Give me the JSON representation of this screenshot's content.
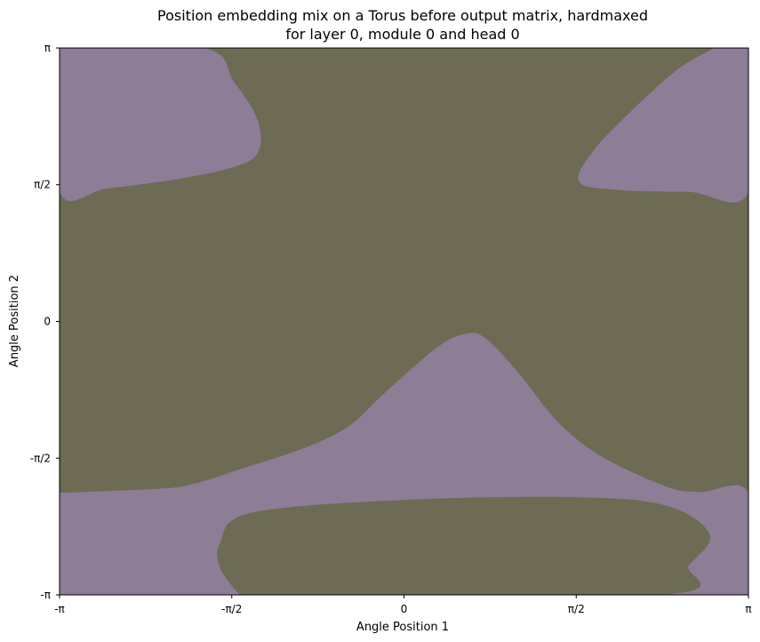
{
  "chart_data": {
    "type": "heatmap",
    "title_line1": "Position embedding mix on a Torus before output matrix, hardmaxed",
    "title_line2": "for layer 0, module 0 and head 0",
    "xlabel": "Angle Position 1",
    "ylabel": "Angle Position 2",
    "xlim": [
      -3.14159,
      3.14159
    ],
    "ylim": [
      -3.14159,
      3.14159
    ],
    "x_ticks": [
      {
        "value": -3.14159,
        "label": "-π"
      },
      {
        "value": -1.5708,
        "label": "-π/2"
      },
      {
        "value": 0,
        "label": "0"
      },
      {
        "value": 1.5708,
        "label": "π/2"
      },
      {
        "value": 3.14159,
        "label": "π"
      }
    ],
    "y_ticks": [
      {
        "value": -3.14159,
        "label": "-π"
      },
      {
        "value": -1.5708,
        "label": "-π/2"
      },
      {
        "value": 0,
        "label": "0"
      },
      {
        "value": 1.5708,
        "label": "π/2"
      },
      {
        "value": 3.14159,
        "label": "π"
      }
    ],
    "grid": false,
    "classes": [
      {
        "id": "class-a",
        "color": "#6d6b54"
      },
      {
        "id": "class-b",
        "color": "#8e7d97"
      }
    ],
    "background_class": "class-a",
    "regions": [
      {
        "class": "class-b",
        "name": "region-top-left",
        "points": [
          [
            -3.14159,
            3.14159
          ],
          [
            -1.83,
            3.14159
          ],
          [
            -1.55,
            2.75
          ],
          [
            -1.34,
            2.33
          ],
          [
            -1.32,
            1.98
          ],
          [
            -1.49,
            1.8
          ],
          [
            -2.0,
            1.65
          ],
          [
            -2.7,
            1.53
          ],
          [
            -3.14159,
            1.5
          ],
          [
            -3.14159,
            3.14159
          ]
        ]
      },
      {
        "class": "class-b",
        "name": "region-top-right",
        "points": [
          [
            2.83,
            3.14159
          ],
          [
            3.14159,
            3.14159
          ],
          [
            3.14159,
            1.49
          ],
          [
            2.6,
            1.49
          ],
          [
            1.98,
            1.51
          ],
          [
            1.6,
            1.6
          ],
          [
            1.72,
            1.95
          ],
          [
            2.1,
            2.45
          ],
          [
            2.5,
            2.9
          ],
          [
            2.83,
            3.14159
          ]
        ]
      },
      {
        "class": "class-b",
        "name": "region-bottom-band",
        "points": [
          [
            -3.14159,
            -1.97
          ],
          [
            -2.2,
            -1.92
          ],
          [
            -1.9,
            -1.86
          ],
          [
            -1.5,
            -1.7
          ],
          [
            -0.9,
            -1.45
          ],
          [
            -0.5,
            -1.2
          ],
          [
            -0.2,
            -0.85
          ],
          [
            0.3,
            -0.3
          ],
          [
            0.57,
            -0.14
          ],
          [
            0.75,
            -0.2
          ],
          [
            1.05,
            -0.6
          ],
          [
            1.4,
            -1.15
          ],
          [
            1.8,
            -1.55
          ],
          [
            2.4,
            -1.9
          ],
          [
            2.7,
            -1.96
          ],
          [
            3.14159,
            -1.97
          ],
          [
            3.14159,
            -3.14159
          ],
          [
            -3.14159,
            -3.14159
          ],
          [
            -3.14159,
            -1.97
          ]
        ]
      },
      {
        "class": "class-a",
        "name": "region-bottom-blob",
        "points": [
          [
            -1.5,
            -3.14159
          ],
          [
            -1.67,
            -2.85
          ],
          [
            -1.68,
            -2.55
          ],
          [
            -1.4,
            -2.2
          ],
          [
            0.0,
            -2.05
          ],
          [
            1.6,
            -2.02
          ],
          [
            2.4,
            -2.12
          ],
          [
            2.79,
            -2.45
          ],
          [
            2.6,
            -2.8
          ],
          [
            2.34,
            -3.14159
          ],
          [
            -1.5,
            -3.14159
          ]
        ]
      }
    ]
  }
}
